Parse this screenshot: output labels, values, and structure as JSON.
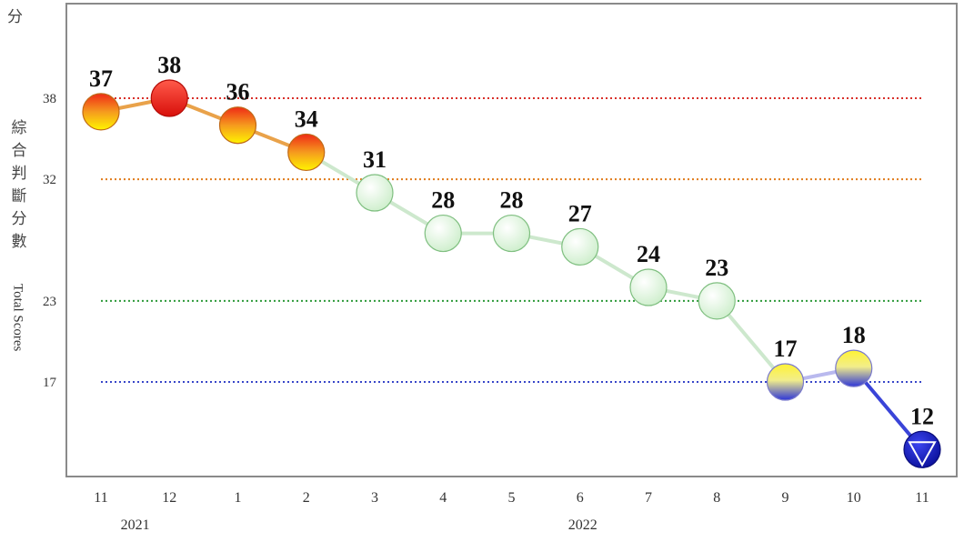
{
  "chart_data": {
    "type": "line",
    "unit_label": "分",
    "ylabel_zh": "綜合判斷分數",
    "ylabel_en": "Total Scores",
    "x": [
      "11",
      "12",
      "1",
      "2",
      "3",
      "4",
      "5",
      "6",
      "7",
      "8",
      "9",
      "10",
      "11"
    ],
    "year_labels": [
      {
        "label": "2021",
        "from_index": 0,
        "to_index": 1
      },
      {
        "label": "2022",
        "from_index": 2,
        "to_index": 12
      }
    ],
    "values": [
      37,
      38,
      36,
      34,
      31,
      28,
      28,
      27,
      24,
      23,
      17,
      18,
      12
    ],
    "ylim": [
      8,
      44
    ],
    "thresholds": [
      {
        "value": 38,
        "color": "#d9302a"
      },
      {
        "value": 32,
        "color": "#e07b1a"
      },
      {
        "value": 23,
        "color": "#2f9a3a"
      },
      {
        "value": 17,
        "color": "#3846c9"
      }
    ],
    "signal_colors": {
      "red": "#e8140f",
      "yellow_red": "#f49a1c",
      "green": "#d7f5d6",
      "yellow_blue": "#f3ee55",
      "blue": "#1a1fbf"
    },
    "signals": [
      "yellow_red",
      "red",
      "yellow_red",
      "yellow_red",
      "green",
      "green",
      "green",
      "green",
      "green",
      "green",
      "yellow_blue",
      "yellow_blue",
      "blue"
    ],
    "grid": false,
    "legend": "none"
  }
}
